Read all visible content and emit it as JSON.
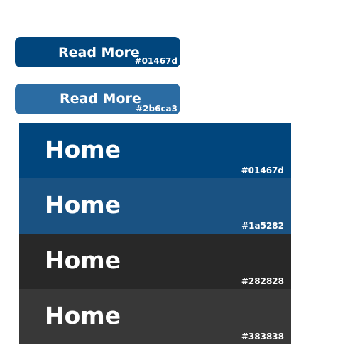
{
  "buttons": [
    {
      "label": "Read More",
      "code": "#01467d",
      "color": "#01467d"
    },
    {
      "label": "Read More",
      "code": "#2b6ca3",
      "color": "#2b6ca3"
    }
  ],
  "menu": [
    {
      "label": "Home",
      "code": "#01467d",
      "color": "#01467d"
    },
    {
      "label": "Home",
      "code": "#1a5282",
      "color": "#1a5282"
    },
    {
      "label": "Home",
      "code": "#282828",
      "color": "#282828"
    },
    {
      "label": "Home",
      "code": "#383838",
      "color": "#383838"
    }
  ]
}
